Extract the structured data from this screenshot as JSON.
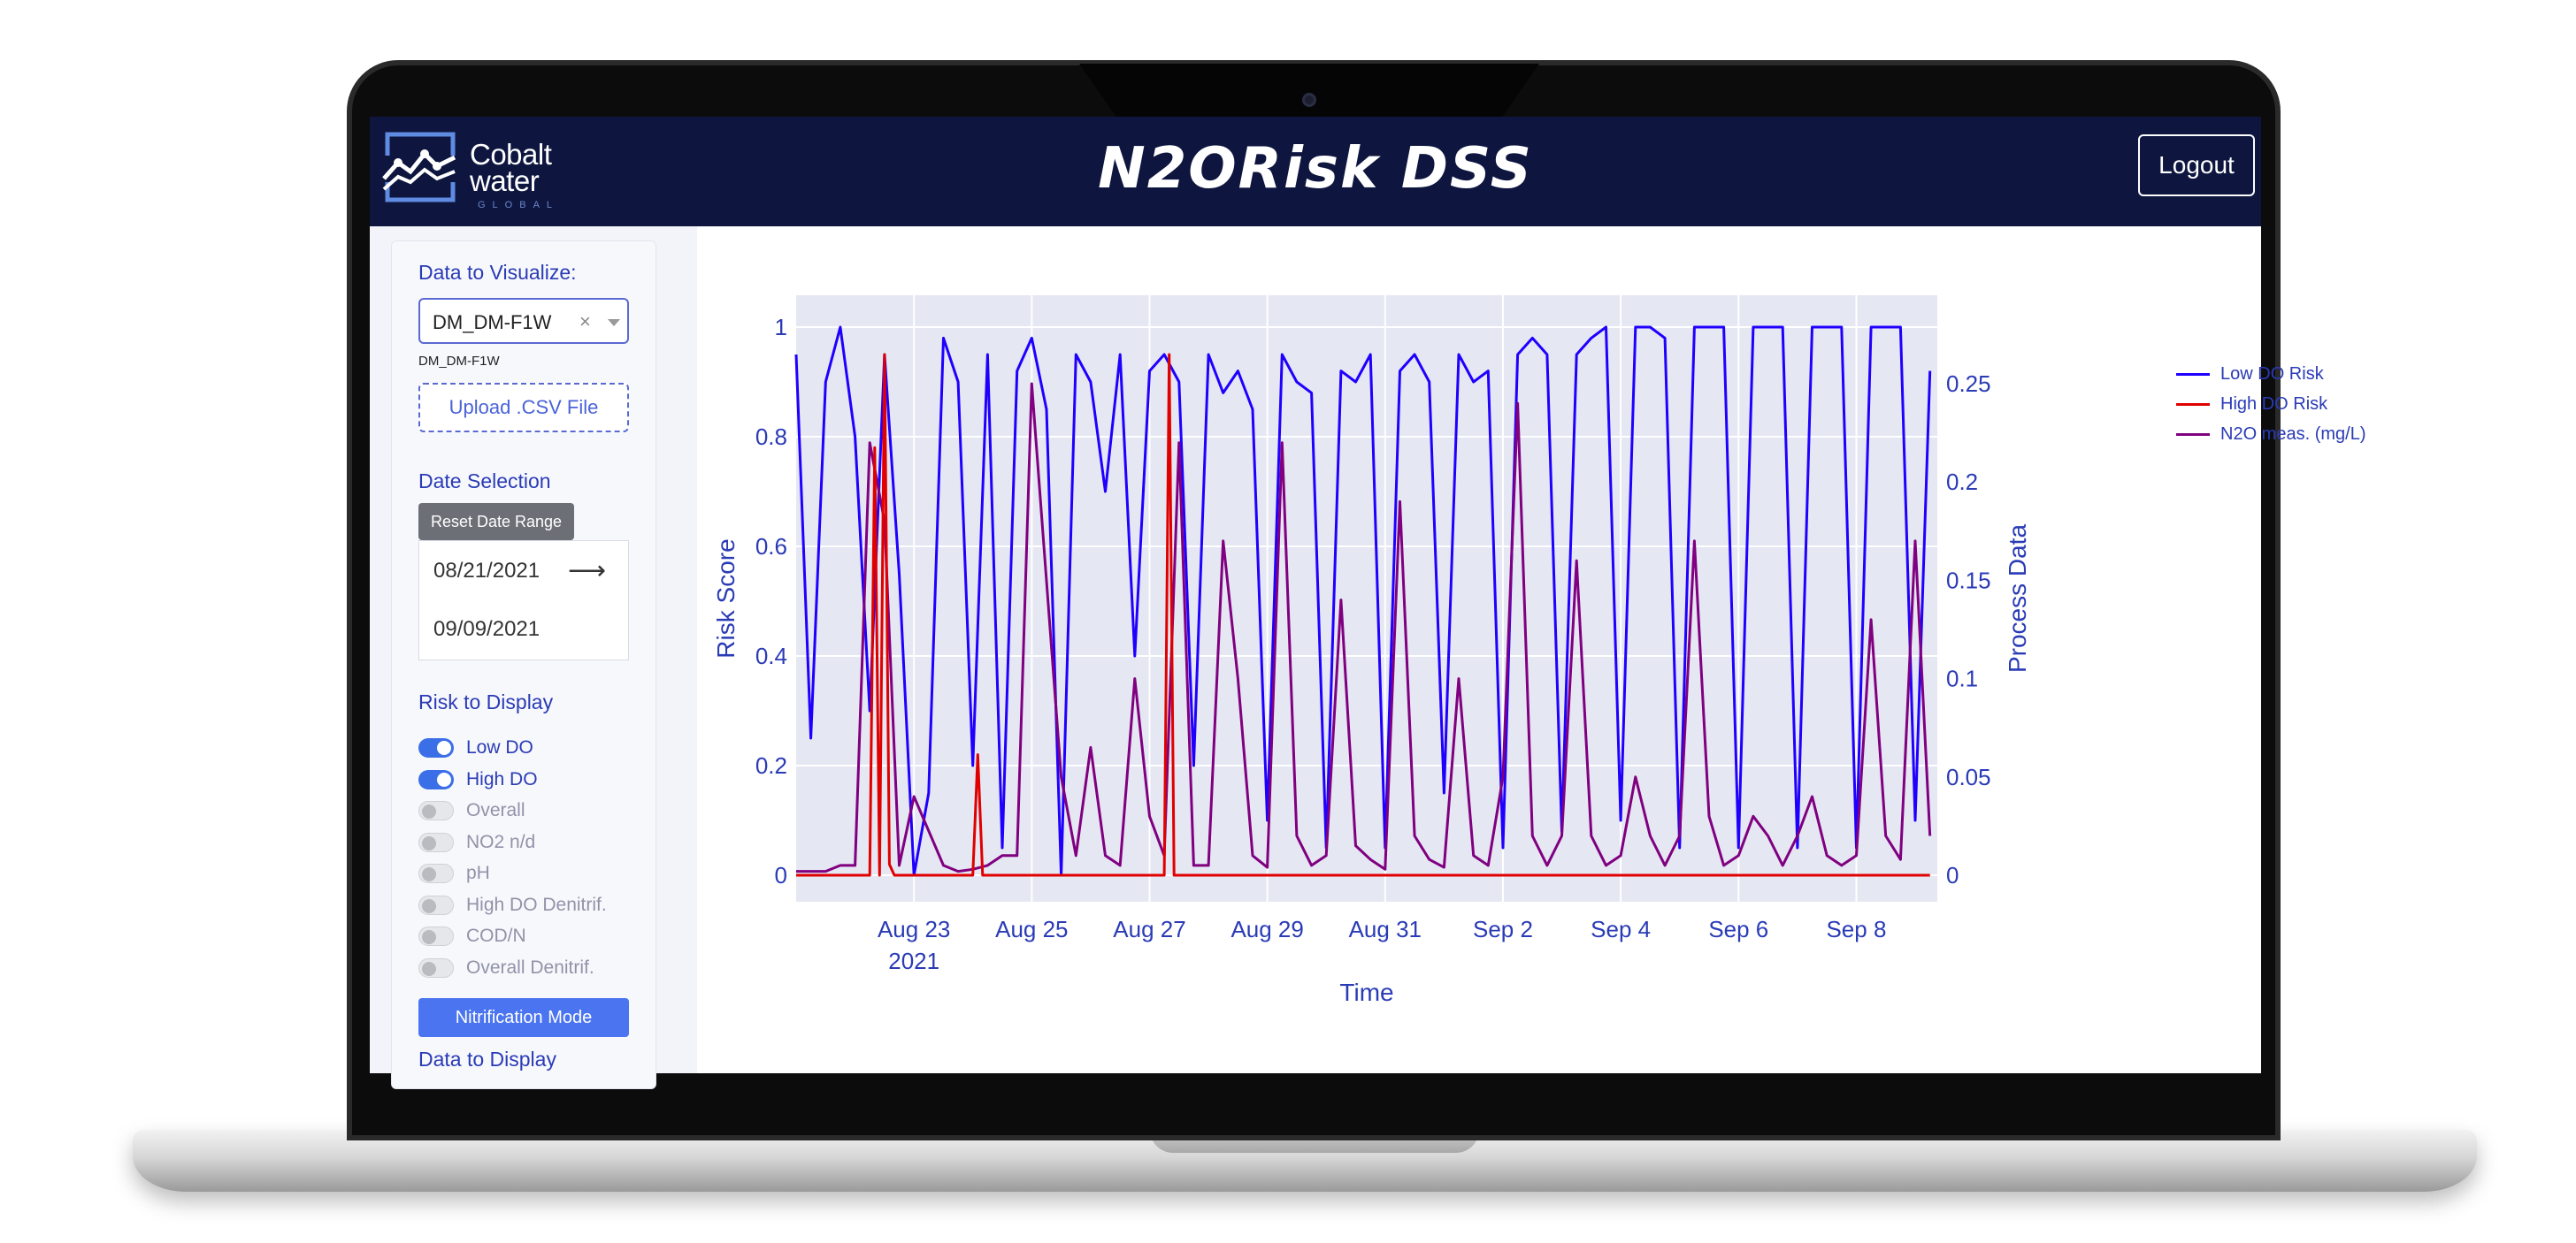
{
  "header": {
    "logo_line1": "Cobalt",
    "logo_line2": "water",
    "logo_sub": "GLOBAL",
    "title": "N2ORisk DSS",
    "logout_label": "Logout"
  },
  "sidebar": {
    "data_label": "Data to Visualize:",
    "dropdown_value": "DM_DM-F1W",
    "dropdown_clear": "×",
    "dropdown_sub": "DM_DM-F1W",
    "upload_label": "Upload .CSV File",
    "date_label": "Date Selection",
    "reset_label": "Reset Date Range",
    "start_date": "08/21/2021",
    "end_date": "09/09/2021",
    "risk_label": "Risk to Display",
    "toggles": [
      {
        "label": "Low DO",
        "on": true
      },
      {
        "label": "High DO",
        "on": true
      },
      {
        "label": "Overall",
        "on": false
      },
      {
        "label": "NO2 n/d",
        "on": false
      },
      {
        "label": "pH",
        "on": false
      },
      {
        "label": "High DO Denitrif.",
        "on": false
      },
      {
        "label": "COD/N",
        "on": false
      },
      {
        "label": "Overall Denitrif.",
        "on": false
      }
    ],
    "mode_button": "Nitrification Mode",
    "display_label": "Data to Display"
  },
  "chart_data": {
    "type": "line",
    "xlabel": "Time",
    "ylabel": "Risk Score",
    "y2label": "Process Data",
    "x_range": [
      "2021-08-21",
      "2021-09-09"
    ],
    "ylim": [
      0,
      1
    ],
    "y2lim": [
      0,
      0.28
    ],
    "x_ticks": [
      "Aug 23",
      "Aug 25",
      "Aug 27",
      "Aug 29",
      "Aug 31",
      "Sep 2",
      "Sep 4",
      "Sep 6",
      "Sep 8"
    ],
    "x_tick_year": "2021",
    "y_ticks": [
      "0",
      "0.2",
      "0.4",
      "0.6",
      "0.8",
      "1"
    ],
    "y2_ticks": [
      "0",
      "0.05",
      "0.1",
      "0.15",
      "0.2",
      "0.25"
    ],
    "legend_position": "top-right",
    "grid": true,
    "series": [
      {
        "name": "Low DO Risk",
        "axis": "y",
        "color": "#1f00ff",
        "x": [
          "2021-08-21 00:00",
          "2021-08-21 06:00",
          "2021-08-21 12:00",
          "2021-08-21 18:00",
          "2021-08-22 00:00",
          "2021-08-22 06:00",
          "2021-08-22 12:00",
          "2021-08-22 18:00",
          "2021-08-23 00:00",
          "2021-08-23 06:00",
          "2021-08-23 12:00",
          "2021-08-23 18:00",
          "2021-08-24 00:00",
          "2021-08-24 06:00",
          "2021-08-24 12:00",
          "2021-08-24 18:00",
          "2021-08-25 00:00",
          "2021-08-25 06:00",
          "2021-08-25 12:00",
          "2021-08-25 18:00",
          "2021-08-26 00:00",
          "2021-08-26 06:00",
          "2021-08-26 12:00",
          "2021-08-26 18:00",
          "2021-08-27 00:00",
          "2021-08-27 06:00",
          "2021-08-27 12:00",
          "2021-08-27 18:00",
          "2021-08-28 00:00",
          "2021-08-28 06:00",
          "2021-08-28 12:00",
          "2021-08-28 18:00",
          "2021-08-29 00:00",
          "2021-08-29 06:00",
          "2021-08-29 12:00",
          "2021-08-29 18:00",
          "2021-08-30 00:00",
          "2021-08-30 06:00",
          "2021-08-30 12:00",
          "2021-08-30 18:00",
          "2021-08-31 00:00",
          "2021-08-31 06:00",
          "2021-08-31 12:00",
          "2021-08-31 18:00",
          "2021-09-01 00:00",
          "2021-09-01 06:00",
          "2021-09-01 12:00",
          "2021-09-01 18:00",
          "2021-09-02 00:00",
          "2021-09-02 06:00",
          "2021-09-02 12:00",
          "2021-09-02 18:00",
          "2021-09-03 00:00",
          "2021-09-03 06:00",
          "2021-09-03 12:00",
          "2021-09-03 18:00",
          "2021-09-04 00:00",
          "2021-09-04 06:00",
          "2021-09-04 12:00",
          "2021-09-04 18:00",
          "2021-09-05 00:00",
          "2021-09-05 06:00",
          "2021-09-05 12:00",
          "2021-09-05 18:00",
          "2021-09-06 00:00",
          "2021-09-06 06:00",
          "2021-09-06 12:00",
          "2021-09-06 18:00",
          "2021-09-07 00:00",
          "2021-09-07 06:00",
          "2021-09-07 12:00",
          "2021-09-07 18:00",
          "2021-09-08 00:00",
          "2021-09-08 06:00",
          "2021-09-08 12:00",
          "2021-09-08 18:00",
          "2021-09-09 00:00",
          "2021-09-09 06:00"
        ],
        "values": [
          0.95,
          0.25,
          0.9,
          1.0,
          0.8,
          0.3,
          0.95,
          0.55,
          0.0,
          0.15,
          0.98,
          0.9,
          0.2,
          0.95,
          0.05,
          0.92,
          0.98,
          0.85,
          0.0,
          0.95,
          0.9,
          0.7,
          0.95,
          0.4,
          0.92,
          0.95,
          0.9,
          0.2,
          0.95,
          0.88,
          0.92,
          0.85,
          0.1,
          0.95,
          0.9,
          0.88,
          0.05,
          0.92,
          0.9,
          0.95,
          0.05,
          0.92,
          0.95,
          0.9,
          0.15,
          0.95,
          0.9,
          0.92,
          0.05,
          0.95,
          0.98,
          0.95,
          0.08,
          0.95,
          0.98,
          1.0,
          0.1,
          1.0,
          1.0,
          0.98,
          0.05,
          1.0,
          1.0,
          1.0,
          0.05,
          1.0,
          1.0,
          1.0,
          0.05,
          1.0,
          1.0,
          1.0,
          0.05,
          1.0,
          1.0,
          1.0,
          0.1,
          0.92
        ]
      },
      {
        "name": "High DO Risk",
        "axis": "y",
        "color": "#e00000",
        "x": [
          "2021-08-21 00:00",
          "2021-08-22 06:00",
          "2021-08-22 08:00",
          "2021-08-22 10:00",
          "2021-08-22 12:00",
          "2021-08-22 14:00",
          "2021-08-22 16:00",
          "2021-08-24 00:00",
          "2021-08-24 02:00",
          "2021-08-24 04:00",
          "2021-08-27 06:00",
          "2021-08-27 08:00",
          "2021-08-27 10:00",
          "2021-09-09 06:00"
        ],
        "values": [
          0.0,
          0.0,
          0.78,
          0.0,
          0.95,
          0.02,
          0.0,
          0.0,
          0.22,
          0.0,
          0.0,
          0.95,
          0.0,
          0.0
        ]
      },
      {
        "name": "N2O meas. (mg/L)",
        "axis": "y2",
        "color": "#800080",
        "x": [
          "2021-08-21 00:00",
          "2021-08-21 12:00",
          "2021-08-21 18:00",
          "2021-08-22 00:00",
          "2021-08-22 06:00",
          "2021-08-22 12:00",
          "2021-08-22 18:00",
          "2021-08-23 00:00",
          "2021-08-23 12:00",
          "2021-08-23 18:00",
          "2021-08-24 00:00",
          "2021-08-24 06:00",
          "2021-08-24 12:00",
          "2021-08-24 18:00",
          "2021-08-25 00:00",
          "2021-08-25 12:00",
          "2021-08-25 18:00",
          "2021-08-26 00:00",
          "2021-08-26 06:00",
          "2021-08-26 12:00",
          "2021-08-26 18:00",
          "2021-08-27 00:00",
          "2021-08-27 06:00",
          "2021-08-27 12:00",
          "2021-08-27 18:00",
          "2021-08-28 00:00",
          "2021-08-28 06:00",
          "2021-08-28 12:00",
          "2021-08-28 18:00",
          "2021-08-29 00:00",
          "2021-08-29 06:00",
          "2021-08-29 12:00",
          "2021-08-29 18:00",
          "2021-08-30 00:00",
          "2021-08-30 06:00",
          "2021-08-30 12:00",
          "2021-08-30 18:00",
          "2021-08-31 00:00",
          "2021-08-31 06:00",
          "2021-08-31 12:00",
          "2021-08-31 18:00",
          "2021-09-01 00:00",
          "2021-09-01 06:00",
          "2021-09-01 12:00",
          "2021-09-01 18:00",
          "2021-09-02 00:00",
          "2021-09-02 06:00",
          "2021-09-02 12:00",
          "2021-09-02 18:00",
          "2021-09-03 00:00",
          "2021-09-03 06:00",
          "2021-09-03 12:00",
          "2021-09-03 18:00",
          "2021-09-04 00:00",
          "2021-09-04 06:00",
          "2021-09-04 12:00",
          "2021-09-04 18:00",
          "2021-09-05 00:00",
          "2021-09-05 06:00",
          "2021-09-05 12:00",
          "2021-09-05 18:00",
          "2021-09-06 00:00",
          "2021-09-06 06:00",
          "2021-09-06 12:00",
          "2021-09-06 18:00",
          "2021-09-07 00:00",
          "2021-09-07 06:00",
          "2021-09-07 12:00",
          "2021-09-07 18:00",
          "2021-09-08 00:00",
          "2021-09-08 06:00",
          "2021-09-08 12:00",
          "2021-09-08 18:00",
          "2021-09-09 00:00",
          "2021-09-09 06:00"
        ],
        "values": [
          0.002,
          0.002,
          0.005,
          0.005,
          0.22,
          0.18,
          0.005,
          0.04,
          0.005,
          0.002,
          0.003,
          0.005,
          0.01,
          0.01,
          0.25,
          0.05,
          0.01,
          0.065,
          0.01,
          0.005,
          0.1,
          0.03,
          0.01,
          0.22,
          0.005,
          0.005,
          0.17,
          0.1,
          0.01,
          0.004,
          0.22,
          0.02,
          0.005,
          0.01,
          0.14,
          0.015,
          0.008,
          0.003,
          0.19,
          0.02,
          0.008,
          0.004,
          0.1,
          0.01,
          0.005,
          0.05,
          0.24,
          0.02,
          0.005,
          0.02,
          0.16,
          0.02,
          0.005,
          0.01,
          0.05,
          0.02,
          0.005,
          0.02,
          0.17,
          0.03,
          0.005,
          0.01,
          0.03,
          0.02,
          0.005,
          0.02,
          0.04,
          0.01,
          0.005,
          0.01,
          0.13,
          0.02,
          0.008,
          0.17,
          0.02
        ]
      }
    ]
  }
}
